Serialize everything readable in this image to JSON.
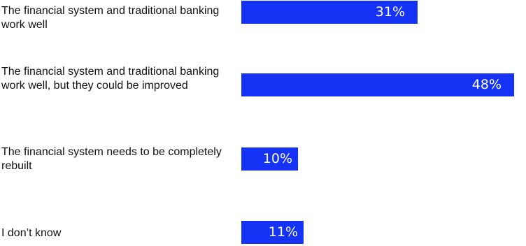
{
  "colors": {
    "bar": "#1433f5",
    "label_text": "#111111",
    "value_text": "#ffffff"
  },
  "chart_data": {
    "type": "bar",
    "orientation": "horizontal",
    "categories": [
      "The financial system and traditional banking work well",
      "The financial system and traditional banking work well, but they could be improved",
      "The financial system needs to be completely rebuilt",
      "I don’t know"
    ],
    "values": [
      31,
      48,
      10,
      11
    ],
    "value_labels": [
      "31%",
      "48%",
      "10%",
      "11%"
    ],
    "unit": "%",
    "grid": false,
    "legend": "none"
  }
}
